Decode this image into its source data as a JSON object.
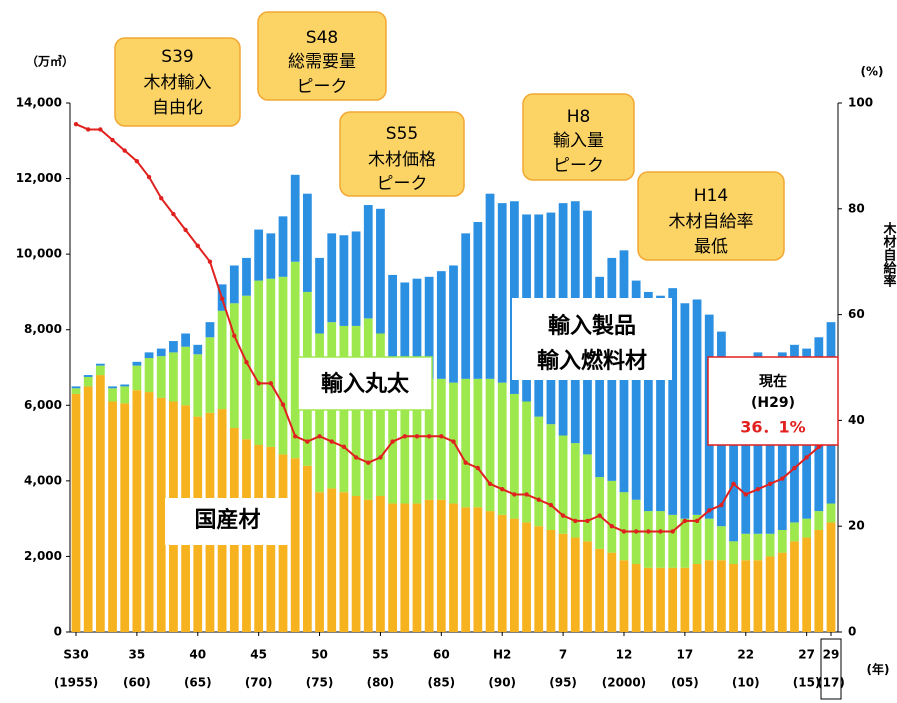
{
  "chart_data": {
    "type": "stacked_bar_line",
    "y_unit": "（万㎥）",
    "y2_unit": "(%)",
    "y2_label": "木材自給率",
    "x_unit": "(年)",
    "categories": [
      "S30",
      null,
      null,
      null,
      null,
      "35",
      null,
      null,
      null,
      null,
      "40",
      null,
      null,
      null,
      null,
      "45",
      null,
      null,
      null,
      null,
      "50",
      null,
      null,
      null,
      null,
      "55",
      null,
      null,
      null,
      null,
      "60",
      null,
      null,
      null,
      null,
      "H2",
      null,
      null,
      null,
      null,
      "7",
      null,
      null,
      null,
      null,
      "12",
      null,
      null,
      null,
      null,
      "17",
      null,
      null,
      null,
      null,
      "22",
      null,
      null,
      null,
      null,
      "27",
      null,
      "29"
    ],
    "category_years": [
      "(1955)",
      null,
      null,
      null,
      null,
      "(60)",
      null,
      null,
      null,
      null,
      "(65)",
      null,
      null,
      null,
      null,
      "(70)",
      null,
      null,
      null,
      null,
      "(75)",
      null,
      null,
      null,
      null,
      "(80)",
      null,
      null,
      null,
      null,
      "(85)",
      null,
      null,
      null,
      null,
      "(90)",
      null,
      null,
      null,
      null,
      "(95)",
      null,
      null,
      null,
      null,
      "(2000)",
      null,
      null,
      null,
      null,
      "(05)",
      null,
      null,
      null,
      null,
      "(10)",
      null,
      null,
      null,
      null,
      "(15)",
      null,
      "(17)"
    ],
    "ylim": [
      0,
      14000
    ],
    "yticks": [
      0,
      {
        "value": 2000,
        "label": "2,000"
      },
      {
        "value": 4000,
        "label": "4,000"
      },
      {
        "value": 6000,
        "label": "6,000"
      },
      {
        "value": 8000,
        "label": "8,000"
      },
      {
        "value": 10000,
        "label": "10,000"
      },
      {
        "value": 12000,
        "label": "12,000"
      },
      {
        "value": 14000,
        "label": "14,000"
      }
    ],
    "y2lim": [
      0,
      100
    ],
    "y2ticks": [
      0,
      20,
      40,
      60,
      80,
      100
    ],
    "series": [
      {
        "name": [
          "国産材"
        ],
        "color": "#f6b31f",
        "values": [
          6300,
          6500,
          6800,
          6100,
          6050,
          6400,
          6350,
          6200,
          6100,
          6000,
          5700,
          5800,
          5900,
          5400,
          5100,
          4950,
          4900,
          4700,
          4600,
          4400,
          3700,
          3800,
          3700,
          3600,
          3500,
          3600,
          3400,
          3400,
          3400,
          3500,
          3500,
          3400,
          3300,
          3300,
          3200,
          3100,
          3000,
          2900,
          2800,
          2700,
          2600,
          2500,
          2400,
          2200,
          2100,
          1900,
          1800,
          1700,
          1700,
          1700,
          1700,
          1800,
          1900,
          1900,
          1800,
          1900,
          1900,
          2000,
          2100,
          2400,
          2500,
          2700,
          2900
        ]
      },
      {
        "name": [
          "輸入丸太"
        ],
        "color": "#9de84c",
        "values": [
          150,
          250,
          250,
          350,
          450,
          650,
          900,
          1100,
          1300,
          1550,
          1650,
          2000,
          2600,
          3300,
          3800,
          4350,
          4450,
          4700,
          5200,
          4600,
          4200,
          4400,
          4400,
          4500,
          4800,
          4300,
          3600,
          3600,
          3400,
          3200,
          3200,
          3200,
          3400,
          3400,
          3500,
          3500,
          3300,
          3200,
          2900,
          2800,
          2600,
          2500,
          2300,
          1900,
          1900,
          1800,
          1700,
          1500,
          1500,
          1400,
          1300,
          1300,
          1100,
          900,
          600,
          700,
          700,
          600,
          600,
          500,
          500,
          500,
          500
        ]
      },
      {
        "name": [
          "輸入製品",
          "輸入燃料材"
        ],
        "color": "#2b8fe2",
        "values": [
          50,
          50,
          50,
          50,
          50,
          100,
          150,
          200,
          300,
          350,
          250,
          400,
          700,
          1000,
          1000,
          1350,
          1200,
          1600,
          2300,
          2600,
          2000,
          2350,
          2400,
          2500,
          3000,
          3300,
          2450,
          2250,
          2550,
          2700,
          2850,
          3100,
          3850,
          4150,
          4900,
          4750,
          5100,
          4950,
          5350,
          5600,
          6150,
          6400,
          6450,
          5300,
          5900,
          6400,
          5800,
          5800,
          5700,
          6000,
          5700,
          5700,
          5400,
          5150,
          4100,
          4600,
          4800,
          4500,
          4700,
          4700,
          4500,
          4600,
          4800
        ]
      },
      {
        "name": [
          "木材自給率"
        ],
        "color": "#e0211f",
        "axis": "y2",
        "kind": "line",
        "values": [
          96,
          95,
          95,
          93,
          91,
          89,
          86,
          82,
          79,
          76,
          73,
          70,
          63,
          56,
          51,
          47,
          47,
          43,
          37,
          36,
          37,
          36,
          35,
          33,
          32,
          33,
          36,
          37,
          37,
          37,
          37,
          36,
          32,
          31,
          28,
          27,
          26,
          26,
          25,
          24,
          22,
          21,
          21,
          22,
          20,
          19,
          19,
          19,
          19,
          19,
          21,
          21,
          23,
          24,
          28,
          26,
          27,
          28,
          29,
          31,
          33,
          35,
          36.1
        ],
        "value_labels": [
          null,
          null,
          null,
          null,
          null,
          null,
          null,
          null,
          null,
          null,
          null,
          null,
          null,
          null,
          null,
          null,
          null,
          null,
          null,
          null,
          null,
          null,
          null,
          null,
          null,
          null,
          null,
          null,
          null,
          null,
          null,
          null,
          null,
          null,
          null,
          null,
          null,
          null,
          null,
          null,
          null,
          null,
          null,
          null,
          null,
          null,
          null,
          null,
          null,
          null,
          null,
          null,
          null,
          null,
          null,
          null,
          null,
          null,
          null,
          null,
          null,
          null,
          "36．1%"
        ]
      }
    ],
    "current_label": [
      "現在",
      "(H29)"
    ],
    "annotations": [
      [
        "S39",
        "木材輸入",
        "自由化"
      ],
      [
        "S48",
        "総需要量",
        "ピーク"
      ],
      [
        "S55",
        "木材価格",
        "ピーク"
      ],
      [
        "H8",
        "輸入量",
        "ピーク"
      ],
      [
        "H14",
        "木材自給率",
        "最低"
      ]
    ]
  }
}
